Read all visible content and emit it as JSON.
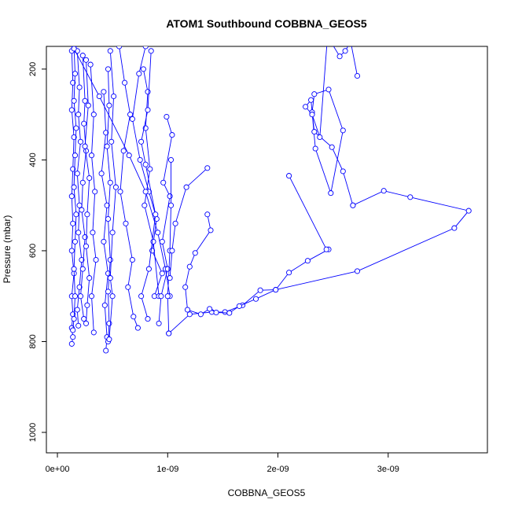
{
  "chart_data": {
    "type": "scatter",
    "title": "ATOM1 Southbound COBBNA_GEOS5",
    "xlabel": "COBBNA_GEOS5",
    "ylabel": "Pressure (mbar)",
    "xlim": [
      -1e-10,
      3.9e-09
    ],
    "ylim": [
      1045,
      150
    ],
    "y_reversed": true,
    "x_ticks": [
      "0e+00",
      "1e-09",
      "2e-09",
      "3e-09"
    ],
    "x_tick_values": [
      0,
      1e-09,
      2e-09,
      3e-09
    ],
    "y_ticks": [
      "200",
      "400",
      "600",
      "800",
      "1000"
    ],
    "y_tick_values": [
      200,
      400,
      600,
      800,
      1000
    ],
    "colors": {
      "series": "#0000ff",
      "axis": "#000000"
    },
    "marker": "open-circle",
    "connected": true,
    "series": [
      {
        "x": [
          1.3e-10,
          1.4e-10,
          1.3e-10,
          1.5e-10,
          1.4e-10,
          1.3e-10,
          1.4e-10,
          1.3e-10,
          1.5e-10,
          1.3e-10,
          1.4e-10,
          1.3e-10,
          1.4e-10,
          1.3e-10
        ],
        "y": [
          160,
          230,
          290,
          350,
          420,
          480,
          540,
          600,
          650,
          700,
          740,
          770,
          790,
          805
        ]
      },
      {
        "x": [
          1.5e-10,
          1.6e-10,
          1.5e-10,
          1.7e-10,
          1.6e-10,
          1.5e-10,
          1.7e-10,
          1.6e-10,
          1.5e-10,
          1.6e-10,
          1.5e-10,
          1.4e-10
        ],
        "y": [
          150,
          210,
          270,
          330,
          390,
          460,
          520,
          580,
          640,
          700,
          750,
          775
        ]
      },
      {
        "x": [
          1.8e-10,
          2e-10,
          1.9e-10,
          2.1e-10,
          1.8e-10,
          2e-10,
          1.9e-10,
          2.2e-10,
          2e-10,
          1.8e-10,
          1.9e-10
        ],
        "y": [
          160,
          240,
          300,
          360,
          430,
          500,
          560,
          620,
          680,
          730,
          765
        ]
      },
      {
        "x": [
          2.3e-10,
          2.5e-10,
          2.4e-10,
          2.6e-10,
          2.3e-10,
          2.2e-10,
          2.5e-10,
          2.3e-10,
          2.1e-10,
          2.4e-10
        ],
        "y": [
          170,
          270,
          320,
          380,
          450,
          510,
          570,
          640,
          700,
          750
        ]
      },
      {
        "x": [
          2.6e-10,
          2.8e-10,
          2.5e-10,
          2.9e-10,
          2.7e-10,
          2.6e-10,
          2.9e-10,
          2.7e-10,
          2.6e-10
        ],
        "y": [
          180,
          280,
          370,
          440,
          520,
          590,
          660,
          720,
          760
        ]
      },
      {
        "x": [
          3e-10,
          3.3e-10,
          3.1e-10,
          3.4e-10,
          3.2e-10,
          3.5e-10,
          3.1e-10,
          3.3e-10
        ],
        "y": [
          190,
          300,
          390,
          470,
          560,
          620,
          700,
          780
        ]
      },
      {
        "x": [
          4.2e-10,
          4.4e-10,
          4e-10,
          4.5e-10,
          4.2e-10,
          4.6e-10,
          4.3e-10,
          4.5e-10,
          4.4e-10
        ],
        "y": [
          250,
          340,
          430,
          500,
          580,
          650,
          720,
          790,
          820
        ]
      },
      {
        "x": [
          4.6e-10,
          4.7e-10,
          4.5e-10,
          4.8e-10,
          4.6e-10,
          4.8e-10,
          4.6e-10,
          4.7e-10,
          4.6e-10
        ],
        "y": [
          200,
          280,
          370,
          450,
          530,
          620,
          690,
          760,
          800
        ]
      },
      {
        "x": [
          4.8e-10,
          5.1e-10,
          4.9e-10,
          5.3e-10,
          5e-10,
          4.8e-10,
          5e-10,
          4.7e-10
        ],
        "y": [
          160,
          260,
          360,
          460,
          560,
          660,
          700,
          795
        ]
      },
      {
        "x": [
          5.6e-10,
          6.1e-10,
          6.6e-10,
          6e-10,
          5.7e-10,
          6.2e-10,
          6.8e-10,
          6.4e-10,
          6.9e-10,
          7.3e-10
        ],
        "y": [
          150,
          230,
          300,
          380,
          470,
          540,
          620,
          680,
          745,
          770
        ]
      },
      {
        "x": [
          8e-10,
          7.4e-10,
          6.8e-10,
          7.5e-10,
          8.3e-10,
          9e-10,
          8.6e-10,
          9.5e-10,
          8.8e-10
        ],
        "y": [
          150,
          210,
          310,
          400,
          470,
          530,
          600,
          650,
          700
        ]
      },
      {
        "x": [
          7.8e-10,
          8.2e-10,
          8e-10,
          8.4e-10,
          7.9e-10,
          8.7e-10,
          9.2e-10
        ],
        "y": [
          200,
          250,
          330,
          420,
          500,
          580,
          700
        ]
      },
      {
        "x": [
          8.5e-10,
          8.2e-10,
          7.6e-10,
          8e-10,
          8.9e-10,
          8.3e-10,
          7.6e-10,
          8.2e-10
        ],
        "y": [
          160,
          290,
          360,
          410,
          520,
          640,
          700,
          750
        ]
      },
      {
        "x": [
          1.5e-10,
          3.8e-10,
          6.5e-10,
          8e-10,
          9.1e-10,
          9.8e-10,
          1.02e-09
        ],
        "y": [
          155,
          260,
          390,
          470,
          560,
          640,
          700
        ]
      },
      {
        "x": [
          9.9e-10,
          1.04e-09,
          9.6e-10,
          1.02e-09,
          9.5e-10,
          1e-09,
          9.4e-10,
          9.2e-10
        ],
        "y": [
          305,
          345,
          450,
          480,
          580,
          640,
          700,
          760
        ]
      },
      {
        "x": [
          1.03e-09,
          1.03e-09,
          1.02e-09,
          1e-09,
          1.01e-09
        ],
        "y": [
          400,
          500,
          600,
          700,
          782
        ]
      },
      {
        "x": [
          1.36e-09,
          1.17e-09,
          1.07e-09,
          1.04e-09,
          1.02e-09
        ],
        "y": [
          418,
          460,
          540,
          600,
          660
        ]
      },
      {
        "x": [
          1.01e-09,
          1.2e-09,
          1.4e-09,
          1.52e-09,
          1.68e-09,
          1.84e-09,
          1.98e-09,
          2.1e-09,
          2.27e-09,
          2.46e-09
        ],
        "y": [
          782,
          740,
          735,
          735,
          720,
          687,
          686,
          648,
          622,
          597
        ]
      },
      {
        "x": [
          1.36e-09,
          1.39e-09,
          1.25e-09,
          1.2e-09,
          1.16e-09,
          1.18e-09,
          1.3e-09,
          1.38e-09,
          1.44e-09,
          1.56e-09,
          1.65e-09,
          1.8e-09,
          1.98e-09,
          2.72e-09,
          3.6e-09,
          3.73e-09,
          3.2e-09,
          2.96e-09,
          2.68e-09
        ],
        "y": [
          520,
          555,
          605,
          635,
          680,
          730,
          740,
          728,
          736,
          737,
          722,
          706,
          686,
          645,
          550,
          512,
          482,
          468,
          500
        ]
      },
      {
        "x": [
          2.1e-09,
          2.44e-09
        ],
        "y": [
          435,
          597
        ]
      },
      {
        "x": [
          2.68e-09,
          2.59e-09,
          2.49e-09,
          2.33e-09,
          2.31e-09,
          2.33e-09,
          2.46e-09,
          2.59e-09,
          2.48e-09,
          2.34e-09,
          2.3e-09,
          2.25e-09,
          2.31e-09,
          2.38e-09,
          2.45e-09,
          2.56e-09,
          2.61e-09,
          2.66e-09,
          2.72e-09
        ],
        "y": [
          500,
          425,
          372,
          338,
          295,
          255,
          245,
          335,
          473,
          375,
          268,
          283,
          300,
          350,
          128,
          172,
          160,
          140,
          215
        ]
      }
    ]
  }
}
